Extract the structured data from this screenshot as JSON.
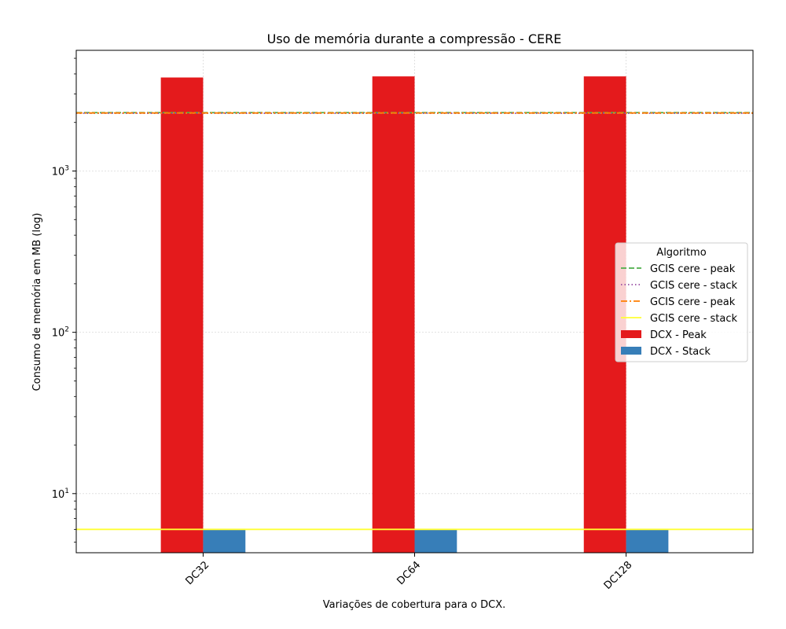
{
  "chart_data": {
    "type": "bar",
    "title": "Uso de memória durante a compressão -  CERE",
    "xlabel": "Variações de cobertura para o DCX.",
    "ylabel": "Consumo de memória em MB (log)",
    "yscale": "log",
    "ylim": [
      4.3,
      5600
    ],
    "grid": true,
    "categories": [
      "DC32",
      "DC64",
      "DC128"
    ],
    "series": [
      {
        "name": "DCX - Peak",
        "values": [
          3800,
          3860,
          3860
        ],
        "color": "#e41a1c"
      },
      {
        "name": "DCX - Stack",
        "values": [
          6.0,
          6.0,
          6.0
        ],
        "color": "#377eb8"
      }
    ],
    "reference_lines": [
      {
        "name": "GCIS cere - peak",
        "value": 2300,
        "style": "dashed",
        "color": "#4daf4a"
      },
      {
        "name": "GCIS cere - stack",
        "value": 2280,
        "style": "dotted",
        "color": "#984ea3"
      },
      {
        "name": "GCIS cere - peak",
        "value": 2290,
        "style": "dashdot",
        "color": "#ff7f00"
      },
      {
        "name": "GCIS cere - stack",
        "value": 6.0,
        "style": "solid",
        "color": "#ffff33"
      }
    ],
    "y_ticks": [
      {
        "value": 10,
        "base": "10",
        "exp": "1"
      },
      {
        "value": 100,
        "base": "10",
        "exp": "2"
      },
      {
        "value": 1000,
        "base": "10",
        "exp": "3"
      }
    ],
    "legend": {
      "title": "Algoritmo",
      "placement": "center-right",
      "order": [
        "GCIS cere - peak",
        "GCIS cere - stack",
        "GCIS cere - peak",
        "GCIS cere - stack",
        "DCX - Peak",
        "DCX - Stack"
      ]
    }
  }
}
